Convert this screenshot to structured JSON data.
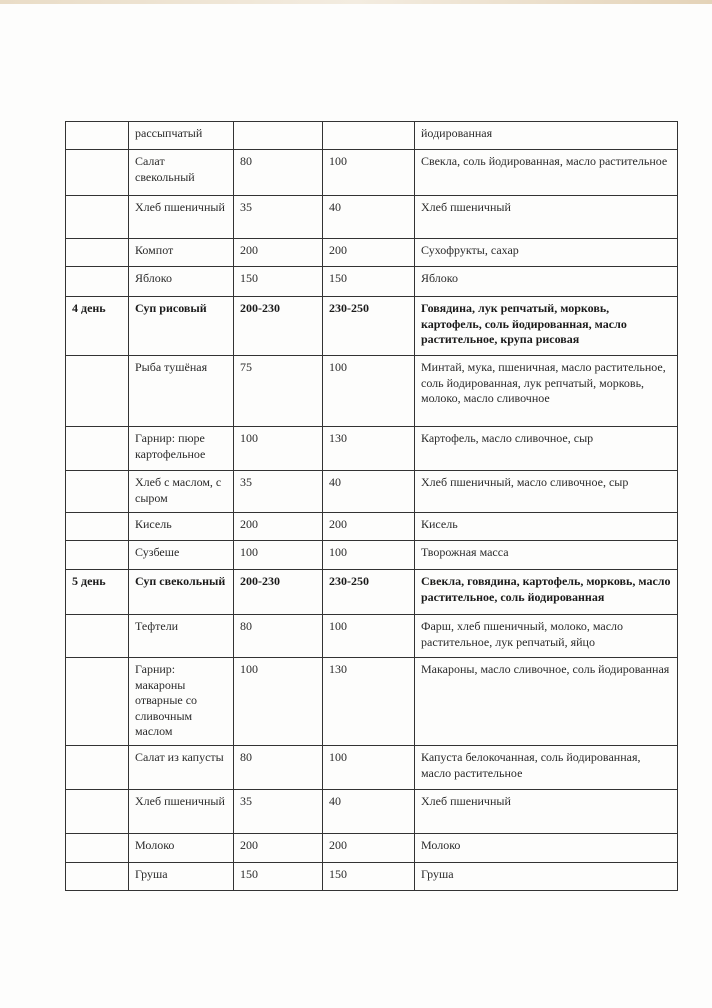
{
  "table": {
    "rows": [
      {
        "day": "",
        "dish": "рассыпчатый",
        "portion1": "",
        "portion2": "",
        "ingredients": "йодированная",
        "bold": false
      },
      {
        "day": "",
        "dish": "Салат свекольный",
        "portion1": "80",
        "portion2": "100",
        "ingredients": "Свекла, соль йодированная, масло растительное",
        "bold": false
      },
      {
        "day": "",
        "dish": "Хлеб пшеничный",
        "portion1": "35",
        "portion2": "40",
        "ingredients": "Хлеб пшеничный",
        "bold": false
      },
      {
        "day": "",
        "dish": "Компот",
        "portion1": "200",
        "portion2": "200",
        "ingredients": "Сухофрукты, сахар",
        "bold": false
      },
      {
        "day": "",
        "dish": "Яблоко",
        "portion1": "150",
        "portion2": "150",
        "ingredients": "Яблоко",
        "bold": false
      },
      {
        "day": "4 день",
        "dish": "Суп рисовый",
        "portion1": "200-230",
        "portion2": "230-250",
        "ingredients": "Говядина, лук репчатый, морковь, картофель, соль йодированная, масло растительное, крупа рисовая",
        "bold": true
      },
      {
        "day": "",
        "dish": "Рыба тушёная",
        "portion1": "75",
        "portion2": "100",
        "ingredients": "Минтай, мука, пшеничная, масло растительное, соль йодированная, лук репчатый, морковь, молоко, масло сливочное",
        "bold": false
      },
      {
        "day": "",
        "dish": "Гарнир: пюре картофельное",
        "portion1": "100",
        "portion2": "130",
        "ingredients": "Картофель, масло сливочное, сыр",
        "bold": false
      },
      {
        "day": "",
        "dish": "Хлеб с маслом, с сыром",
        "portion1": "35",
        "portion2": "40",
        "ingredients": "Хлеб пшеничный, масло сливочное, сыр",
        "bold": false
      },
      {
        "day": "",
        "dish": "Кисель",
        "portion1": "200",
        "portion2": "200",
        "ingredients": "Кисель",
        "bold": false
      },
      {
        "day": "",
        "dish": "Сузбеше",
        "portion1": "100",
        "portion2": "100",
        "ingredients": "Творожная масса",
        "bold": false
      },
      {
        "day": "5 день",
        "dish": "Суп свекольный",
        "portion1": "200-230",
        "portion2": "230-250",
        "ingredients": "Свекла, говядина, картофель, морковь, масло растительное, соль йодированная",
        "bold": true
      },
      {
        "day": "",
        "dish": "Тефтели",
        "portion1": "80",
        "portion2": "100",
        "ingredients": "Фарш, хлеб пшеничный, молоко, масло растительное, лук репчатый, яйцо",
        "bold": false
      },
      {
        "day": "",
        "dish": "Гарнир: макароны отварные со сливочным маслом",
        "portion1": "100",
        "portion2": "130",
        "ingredients": "Макароны, масло сливочное, соль йодированная",
        "bold": false
      },
      {
        "day": "",
        "dish": "Салат из капусты",
        "portion1": "80",
        "portion2": "100",
        "ingredients": "Капуста белокочанная, соль йодированная, масло растительное",
        "bold": false
      },
      {
        "day": "",
        "dish": "Хлеб пшеничный",
        "portion1": "35",
        "portion2": "40",
        "ingredients": "Хлеб пшеничный",
        "bold": false
      },
      {
        "day": "",
        "dish": "Молоко",
        "portion1": "200",
        "portion2": "200",
        "ingredients": "Молоко",
        "bold": false
      },
      {
        "day": "",
        "dish": "Груша",
        "portion1": "150",
        "portion2": "150",
        "ingredients": "Груша",
        "bold": false
      }
    ]
  }
}
